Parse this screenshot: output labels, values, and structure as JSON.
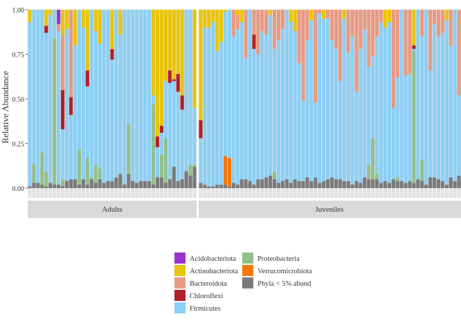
{
  "chart_data": {
    "type": "bar",
    "stacked": true,
    "ylabel": "Relative Abundance",
    "ylim": [
      0,
      1
    ],
    "yticks": [
      "0.00",
      "0.25",
      "0.50",
      "0.75",
      "1.00"
    ],
    "panels": [
      "Adults",
      "Juveniles"
    ],
    "sample_counts": {
      "Adults": 41,
      "Juveniles": 64
    },
    "legend": [
      {
        "name": "Acidobacteriota",
        "color": "#9933cc"
      },
      {
        "name": "Actinobacteriota",
        "color": "#e8c40a"
      },
      {
        "name": "Bacteroidota",
        "color": "#e89a82"
      },
      {
        "name": "Chloroflexi",
        "color": "#b2202a"
      },
      {
        "name": "Firmicutes",
        "color": "#8ccff5"
      },
      {
        "name": "Proteobacteria",
        "color": "#93bf8d"
      },
      {
        "name": "Verrucomicrobiota",
        "color": "#f4780e"
      },
      {
        "name": "Phyla < 5% abund.",
        "color": "#7a7a7a"
      }
    ],
    "series_note": "Adults: Acidobacteriota only in sample 8 (~0.08); Chloroflexi ~0.03-0.27 in ~11 samples; Actinobacteriota 0-0.55; Proteobacteria up to ~0.82 (sample 7). Juveniles: Bacteroidota up to ~0.55 in many samples, Verrucomicrobiota ~0.17 in samples 7-8, Firmicutes dominant."
  }
}
